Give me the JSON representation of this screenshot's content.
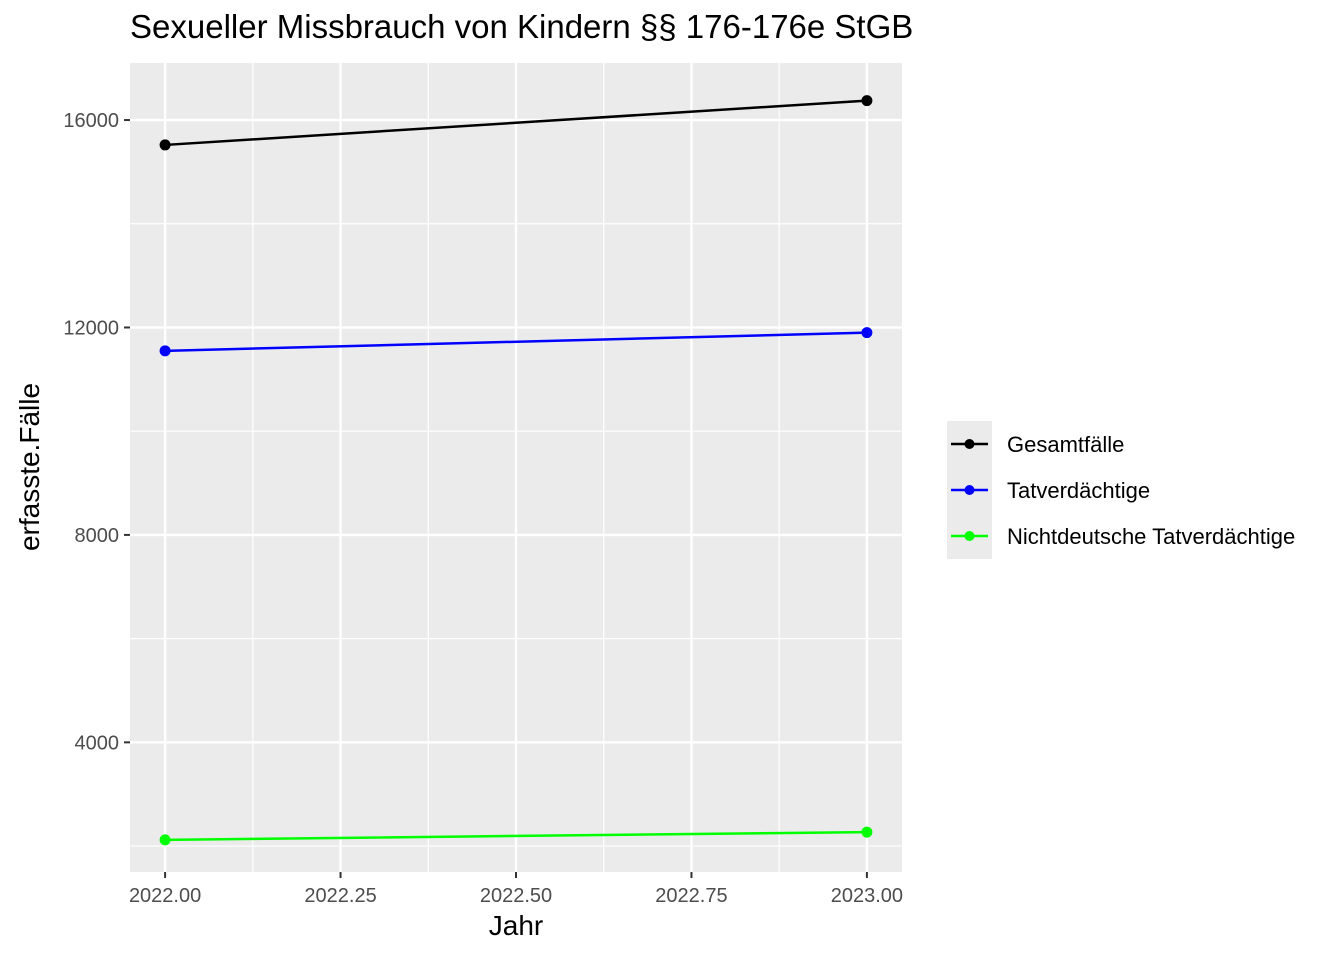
{
  "chart_data": {
    "type": "line",
    "title": "Sexueller Missbrauch von Kindern §§ 176-176e StGB",
    "xlabel": "Jahr",
    "ylabel": "erfasste.Fälle",
    "x": [
      2022,
      2023
    ],
    "xlim": [
      2021.95,
      2023.05
    ],
    "ylim": [
      1500,
      17100
    ],
    "xticks": [
      2022.0,
      2022.25,
      2022.5,
      2022.75,
      2023.0
    ],
    "xtick_labels": [
      "2022.00",
      "2022.25",
      "2022.50",
      "2022.75",
      "2023.00"
    ],
    "yticks": [
      4000,
      8000,
      12000,
      16000
    ],
    "ytick_labels": [
      "4000",
      "8000",
      "12000",
      "16000"
    ],
    "grid": true,
    "legend_position": "right",
    "background": "#ebebeb",
    "series": [
      {
        "name": "Gesamtfälle",
        "color": "#000000",
        "values": [
          15520,
          16375
        ]
      },
      {
        "name": "Tatverdächtige",
        "color": "#0000ff",
        "values": [
          11550,
          11900
        ]
      },
      {
        "name": "Nichtdeutsche Tatverdächtige",
        "color": "#00ff00",
        "values": [
          2120,
          2270
        ]
      }
    ]
  }
}
